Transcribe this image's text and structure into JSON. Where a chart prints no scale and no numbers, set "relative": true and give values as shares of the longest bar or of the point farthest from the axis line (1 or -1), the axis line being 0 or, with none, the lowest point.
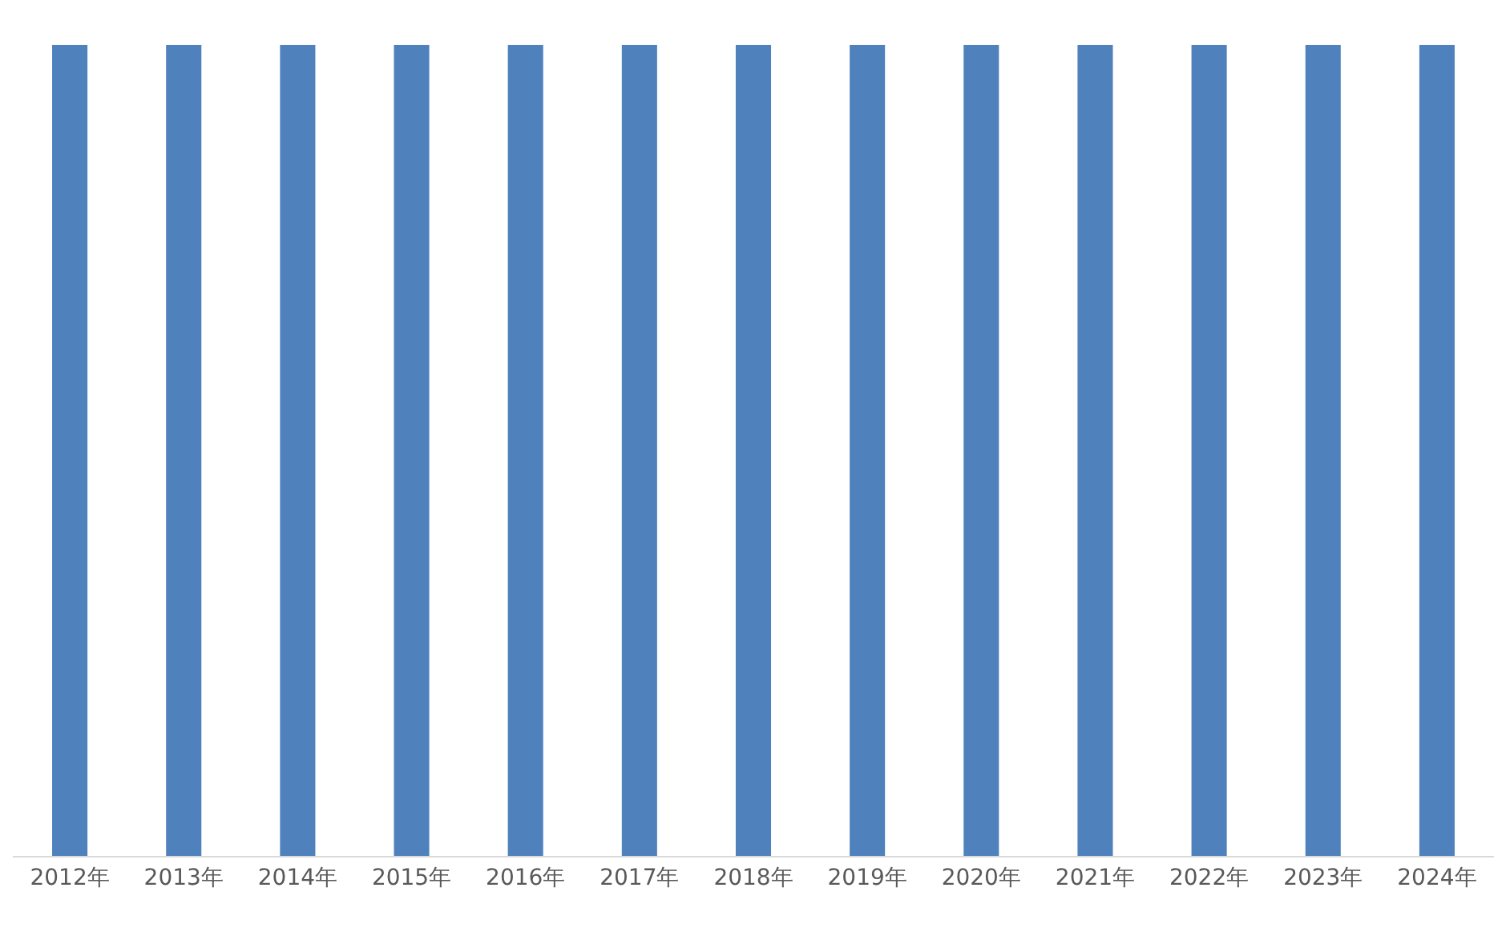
{
  "chart_data": {
    "type": "bar",
    "relative": true,
    "categories": [
      "2012年",
      "2013年",
      "2014年",
      "2015年",
      "2016年",
      "2017年",
      "2018年",
      "2019年",
      "2020年",
      "2021年",
      "2022年",
      "2023年",
      "2024年"
    ],
    "series": [
      {
        "color": "#4f81bd",
        "values": [
          1,
          1,
          1,
          1,
          1,
          1,
          1,
          1,
          1,
          1,
          1,
          1,
          1
        ]
      }
    ]
  }
}
